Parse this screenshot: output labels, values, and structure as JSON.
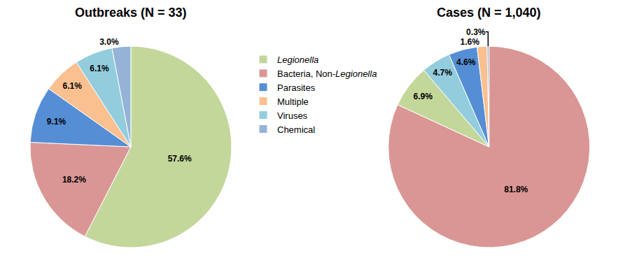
{
  "chart_data": [
    {
      "type": "pie",
      "title": "Outbreaks (N = 33)",
      "categories": [
        "Legionella",
        "Bacteria, Non-Legionella",
        "Parasites",
        "Multiple",
        "Viruses",
        "Chemical"
      ],
      "values": [
        57.6,
        18.2,
        9.1,
        6.1,
        6.1,
        3.0
      ],
      "value_labels": [
        "57.6%",
        "18.2%",
        "9.1%",
        "6.1%",
        "6.1%",
        "3.0%"
      ],
      "colors": [
        "#c4d79b",
        "#da9694",
        "#558ed5",
        "#fac090",
        "#93cddd",
        "#95b3d7"
      ],
      "data_labels": true,
      "legend": "right"
    },
    {
      "type": "pie",
      "title": "Cases (N = 1,040)",
      "categories": [
        "Bacteria, Non-Legionella",
        "Legionella",
        "Viruses",
        "Parasites",
        "Multiple",
        "Chemical"
      ],
      "values": [
        81.8,
        6.9,
        4.7,
        4.6,
        1.6,
        0.3
      ],
      "value_labels": [
        "81.8%",
        "6.9%",
        "4.7%",
        "4.6%",
        "1.6%",
        "0.3%"
      ],
      "colors": [
        "#da9694",
        "#c4d79b",
        "#93cddd",
        "#558ed5",
        "#fac090",
        "#95b3d7"
      ],
      "data_labels": true
    }
  ]
}
